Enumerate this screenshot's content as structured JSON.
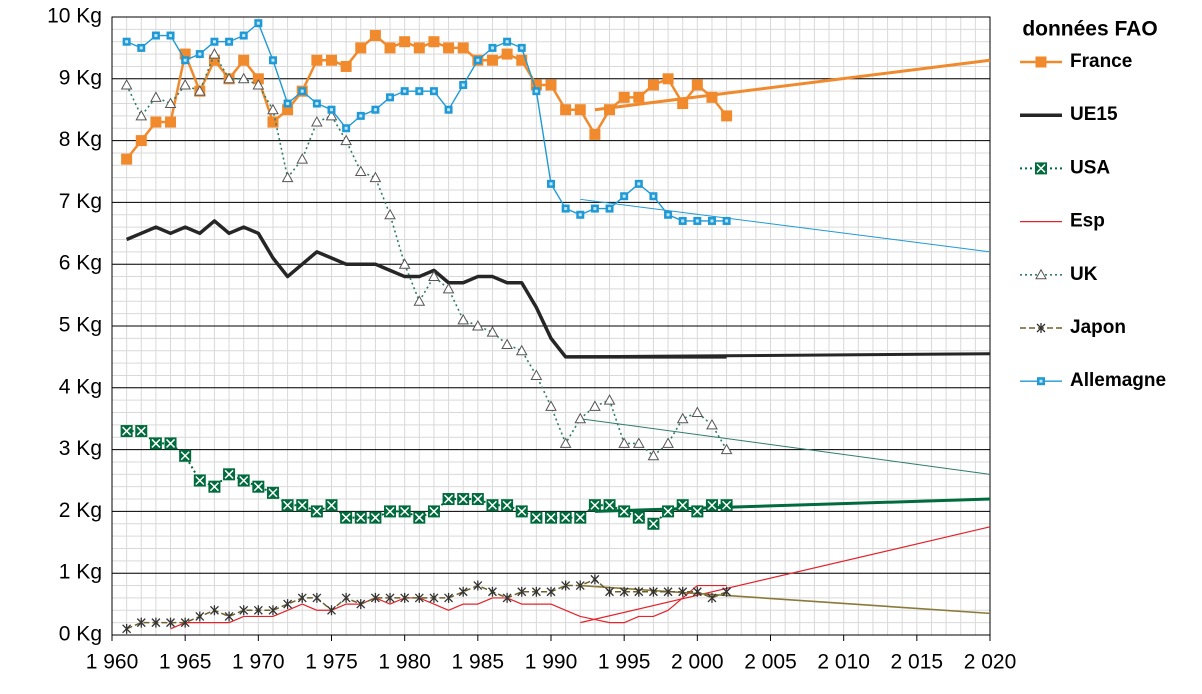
{
  "chart_data": {
    "type": "line",
    "legend_title": "données FAO",
    "legend": "right",
    "grid": true,
    "xlim": [
      1960,
      2020
    ],
    "xticks": [
      {
        "value": 1960,
        "label": "1 960"
      },
      {
        "value": 1965,
        "label": "1 965"
      },
      {
        "value": 1970,
        "label": "1 970"
      },
      {
        "value": 1975,
        "label": "1 975"
      },
      {
        "value": 1980,
        "label": "1 980"
      },
      {
        "value": 1985,
        "label": "1 985"
      },
      {
        "value": 1990,
        "label": "1 990"
      },
      {
        "value": 1995,
        "label": "1 995"
      },
      {
        "value": 2000,
        "label": "2 000"
      },
      {
        "value": 2005,
        "label": "2 005"
      },
      {
        "value": 2010,
        "label": "2 010"
      },
      {
        "value": 2015,
        "label": "2 015"
      },
      {
        "value": 2020,
        "label": "2 020"
      }
    ],
    "ylim": [
      0,
      10
    ],
    "yticks": [
      {
        "value": 0,
        "label": "0 Kg"
      },
      {
        "value": 1,
        "label": "1 Kg"
      },
      {
        "value": 2,
        "label": "2 Kg"
      },
      {
        "value": 3,
        "label": "3 Kg"
      },
      {
        "value": 4,
        "label": "4 Kg"
      },
      {
        "value": 5,
        "label": "5 Kg"
      },
      {
        "value": 6,
        "label": "6 Kg"
      },
      {
        "value": 7,
        "label": "7 Kg"
      },
      {
        "value": 8,
        "label": "8 Kg"
      },
      {
        "value": 9,
        "label": "9 Kg"
      },
      {
        "value": 10,
        "label": "10 Kg"
      }
    ],
    "x": [
      1961,
      1962,
      1963,
      1964,
      1965,
      1966,
      1967,
      1968,
      1969,
      1970,
      1971,
      1972,
      1973,
      1974,
      1975,
      1976,
      1977,
      1978,
      1979,
      1980,
      1981,
      1982,
      1983,
      1984,
      1985,
      1986,
      1987,
      1988,
      1989,
      1990,
      1991,
      1992,
      1993,
      1994,
      1995,
      1996,
      1997,
      1998,
      1999,
      2000,
      2001,
      2002
    ],
    "series": [
      {
        "name": "France",
        "color": "#f08a2c",
        "width": 2.5,
        "line_style": "solid",
        "marker": "square",
        "values": [
          7.7,
          8.0,
          8.3,
          8.3,
          9.4,
          8.8,
          9.3,
          9.0,
          9.3,
          9.0,
          8.3,
          8.5,
          8.8,
          9.3,
          9.3,
          9.2,
          9.5,
          9.7,
          9.5,
          9.6,
          9.5,
          9.6,
          9.5,
          9.5,
          9.3,
          9.3,
          9.4,
          9.3,
          8.9,
          8.9,
          8.5,
          8.5,
          8.1,
          8.5,
          8.7,
          8.7,
          8.9,
          9.0,
          8.6,
          8.9,
          8.7,
          8.4
        ]
      },
      {
        "name": "UE15",
        "color": "#262626",
        "width": 3.5,
        "line_style": "solid",
        "marker": "none",
        "values": [
          6.4,
          6.5,
          6.6,
          6.5,
          6.6,
          6.5,
          6.7,
          6.5,
          6.6,
          6.5,
          6.1,
          5.8,
          6.0,
          6.2,
          6.1,
          6.0,
          6.0,
          6.0,
          5.9,
          5.8,
          5.8,
          5.9,
          5.7,
          5.7,
          5.8,
          5.8,
          5.7,
          5.7,
          5.3,
          4.8,
          4.5,
          4.5,
          4.5,
          4.5,
          4.5,
          4.5,
          4.5,
          4.5,
          4.5,
          4.5,
          4.5,
          4.5
        ]
      },
      {
        "name": "USA",
        "color": "#006b3c",
        "width": 2,
        "line_style": "dotted",
        "marker": "xsquare",
        "values": [
          3.3,
          3.3,
          3.1,
          3.1,
          2.9,
          2.5,
          2.4,
          2.6,
          2.5,
          2.4,
          2.3,
          2.1,
          2.1,
          2.0,
          2.1,
          1.9,
          1.9,
          1.9,
          2.0,
          2.0,
          1.9,
          2.0,
          2.2,
          2.2,
          2.2,
          2.1,
          2.1,
          2.0,
          1.9,
          1.9,
          1.9,
          1.9,
          2.1,
          2.1,
          2.0,
          1.9,
          1.8,
          2.0,
          2.1,
          2.0,
          2.1,
          2.1
        ]
      },
      {
        "name": "Esp",
        "color": "#e3242b",
        "width": 1.2,
        "line_style": "solid",
        "marker": "none",
        "values": [
          null,
          null,
          null,
          0.1,
          0.2,
          0.2,
          0.2,
          0.2,
          0.3,
          0.3,
          0.3,
          0.4,
          0.5,
          0.4,
          0.4,
          0.5,
          0.5,
          0.6,
          0.5,
          0.6,
          0.6,
          0.5,
          0.4,
          0.5,
          0.5,
          0.6,
          0.6,
          0.5,
          0.5,
          0.5,
          0.4,
          0.3,
          0.25,
          0.2,
          0.2,
          0.3,
          0.3,
          0.4,
          0.6,
          0.8,
          0.8,
          0.8
        ]
      },
      {
        "name": "UK",
        "color": "#2e7d6a",
        "width": 1.6,
        "line_style": "dotted",
        "marker": "triangle",
        "values": [
          8.9,
          8.4,
          8.7,
          8.6,
          8.9,
          8.8,
          9.4,
          9.0,
          9.0,
          8.9,
          8.5,
          7.4,
          7.7,
          8.3,
          8.4,
          8.0,
          7.5,
          7.4,
          6.8,
          6.0,
          5.4,
          5.8,
          5.6,
          5.1,
          5.0,
          4.9,
          4.7,
          4.6,
          4.2,
          3.7,
          3.1,
          3.5,
          3.7,
          3.8,
          3.1,
          3.1,
          2.9,
          3.1,
          3.5,
          3.6,
          3.4,
          3.0
        ]
      },
      {
        "name": "Japon",
        "color": "#6b5f2a",
        "width": 1.5,
        "line_style": "dashed",
        "marker": "star",
        "values": [
          0.1,
          0.2,
          0.2,
          0.2,
          0.2,
          0.3,
          0.4,
          0.3,
          0.4,
          0.4,
          0.4,
          0.5,
          0.6,
          0.6,
          0.4,
          0.6,
          0.5,
          0.6,
          0.6,
          0.6,
          0.6,
          0.6,
          0.6,
          0.7,
          0.8,
          0.7,
          0.6,
          0.7,
          0.7,
          0.7,
          0.8,
          0.8,
          0.9,
          0.7,
          0.7,
          0.7,
          0.7,
          0.7,
          0.7,
          0.7,
          0.6,
          0.7
        ]
      },
      {
        "name": "Allemagne",
        "color": "#1f9ad6",
        "width": 1.4,
        "line_style": "solid",
        "marker": "smallsquare",
        "values": [
          9.6,
          9.5,
          9.7,
          9.7,
          9.3,
          9.4,
          9.6,
          9.6,
          9.7,
          9.9,
          9.3,
          8.6,
          8.8,
          8.6,
          8.5,
          8.2,
          8.4,
          8.5,
          8.7,
          8.8,
          8.8,
          8.8,
          8.5,
          8.9,
          9.3,
          9.5,
          9.6,
          9.5,
          8.8,
          7.3,
          6.9,
          6.8,
          6.9,
          6.9,
          7.1,
          7.3,
          7.1,
          6.8,
          6.7,
          6.7,
          6.7,
          6.7
        ]
      }
    ],
    "trend_lines": [
      {
        "color": "#f08a2c",
        "width": 3,
        "x": [
          1993,
          2020
        ],
        "values": [
          8.5,
          9.3
        ]
      },
      {
        "color": "#262626",
        "width": 3,
        "x": [
          1991,
          2020
        ],
        "values": [
          4.5,
          4.55
        ]
      },
      {
        "color": "#006b3c",
        "width": 3,
        "x": [
          1993,
          2020
        ],
        "values": [
          2.0,
          2.2
        ]
      },
      {
        "color": "#e3242b",
        "width": 1.2,
        "x": [
          1992,
          2020
        ],
        "values": [
          0.2,
          1.75
        ]
      },
      {
        "color": "#2e7d6a",
        "width": 1,
        "x": [
          1992,
          2020
        ],
        "values": [
          3.5,
          2.6
        ]
      },
      {
        "color": "#8a7a3a",
        "width": 1.6,
        "x": [
          1992,
          2020
        ],
        "values": [
          0.8,
          0.35
        ]
      },
      {
        "color": "#1f9ad6",
        "width": 1,
        "x": [
          1992,
          2020
        ],
        "values": [
          7.05,
          6.2
        ]
      }
    ]
  }
}
